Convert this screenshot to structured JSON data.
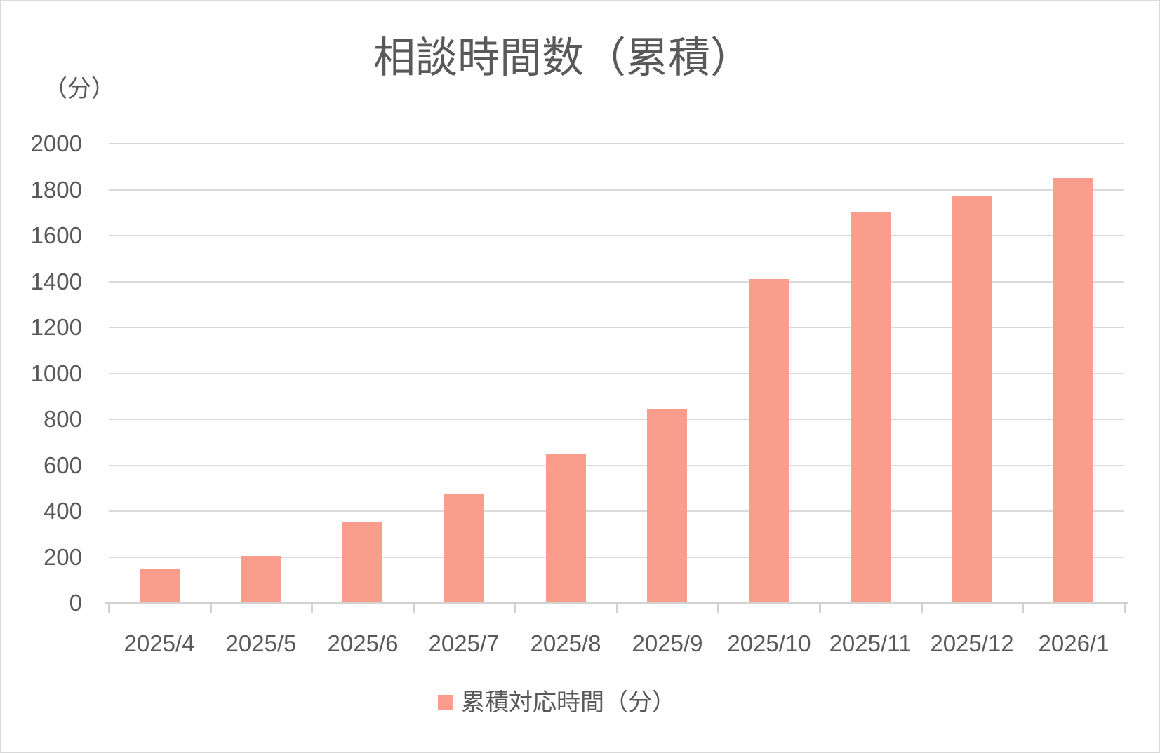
{
  "chart_data": {
    "type": "bar",
    "title": "相談時間数（累積）",
    "unit_label": "（分）",
    "categories": [
      "2025/4",
      "2025/5",
      "2025/6",
      "2025/7",
      "2025/8",
      "2025/9",
      "2025/10",
      "2025/11",
      "2025/12",
      "2026/1"
    ],
    "series": [
      {
        "name": "累積対応時間（分）",
        "values": [
          150,
          205,
          350,
          475,
          650,
          845,
          1410,
          1700,
          1770,
          1850
        ]
      }
    ],
    "xlabel": "",
    "ylabel": "（分）",
    "ylim": [
      0,
      2000
    ],
    "ytick_step": 200,
    "yticks": [
      "0",
      "200",
      "400",
      "600",
      "800",
      "1000",
      "1200",
      "1400",
      "1600",
      "1800",
      "2000"
    ],
    "grid": true,
    "legend_position": "bottom",
    "colors": {
      "bar": "#FA9D8C",
      "text": "#595959",
      "grid": "#DBDBDB",
      "axis": "#D2D2D2",
      "background": "#FFFFFF",
      "border": "#D9D9D9"
    }
  }
}
